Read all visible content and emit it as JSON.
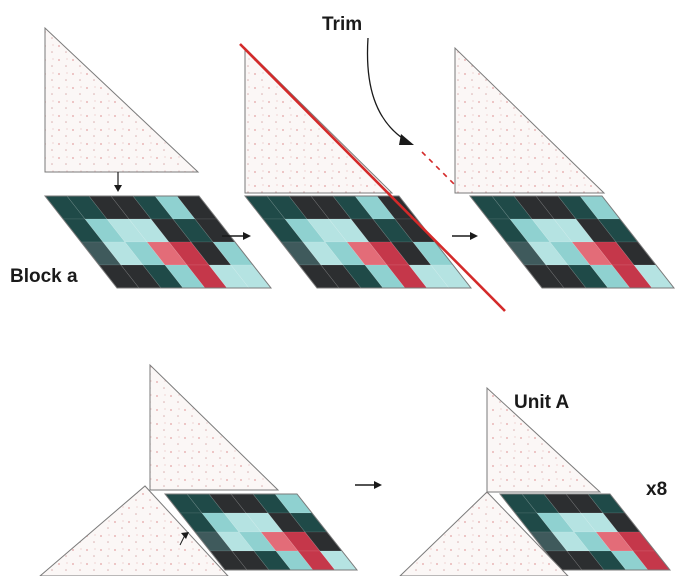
{
  "labels": {
    "trim": "Trim",
    "block": "Block a",
    "unit": "Unit A",
    "multiplier": "x8"
  },
  "colors": {
    "background_fabric": "#fbf7f6",
    "background_dots": "#e3a3a3",
    "outline": "#7a7a7a",
    "trim_line": "#d42a2a",
    "arrow": "#1a1a1a",
    "patch_dark_teal": "#1f4a48",
    "patch_charcoal": "#2c2e30",
    "patch_aqua": "#8fd1d0",
    "patch_light_aqua": "#b5e3e2",
    "patch_pink": "#e36c78",
    "patch_rose": "#c5374a",
    "patch_slate": "#3f5a5c"
  }
}
